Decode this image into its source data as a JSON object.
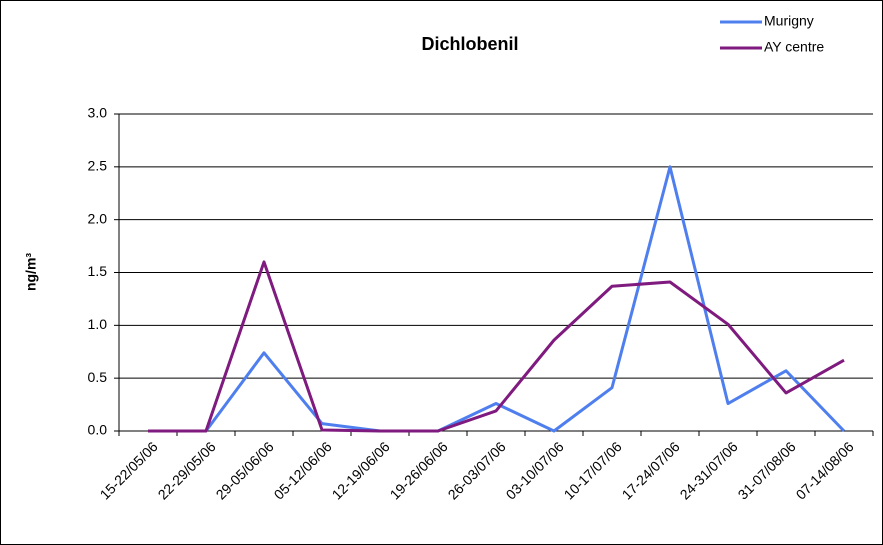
{
  "chart_data": {
    "type": "line",
    "title": "Dichlobenil",
    "y_label": "ng/m³",
    "categories": [
      "15-22/05/06",
      "22-29/05/06",
      "29-05/06/06",
      "05-12/06/06",
      "12-19/06/06",
      "19-26/06/06",
      "26-03/07/06",
      "03-10/07/06",
      "10-17/07/06",
      "17-24/07/06",
      "24-31/07/06",
      "31-07/08/06",
      "07-14/08/06"
    ],
    "series": [
      {
        "name": "Murigny",
        "color": "#4f7fef",
        "values": [
          0,
          0,
          0.74,
          0.07,
          0,
          0,
          0.26,
          0,
          0.41,
          2.5,
          0.26,
          0.57,
          0
        ]
      },
      {
        "name": "AY centre",
        "color": "#7f1a7f",
        "values": [
          0,
          0,
          1.6,
          0.01,
          0,
          0,
          0.19,
          0.86,
          1.37,
          1.41,
          1.01,
          0.36,
          0.67
        ]
      }
    ],
    "ylim": [
      0,
      3
    ],
    "yticks": [
      {
        "value": 0,
        "label": "0.0"
      },
      0.5,
      {
        "value": 1,
        "label": "1.0"
      },
      1.5,
      {
        "value": 2,
        "label": "2.0"
      },
      2.5,
      {
        "value": 3,
        "label": "3.0"
      }
    ],
    "grid": true,
    "legend": "upper right"
  }
}
